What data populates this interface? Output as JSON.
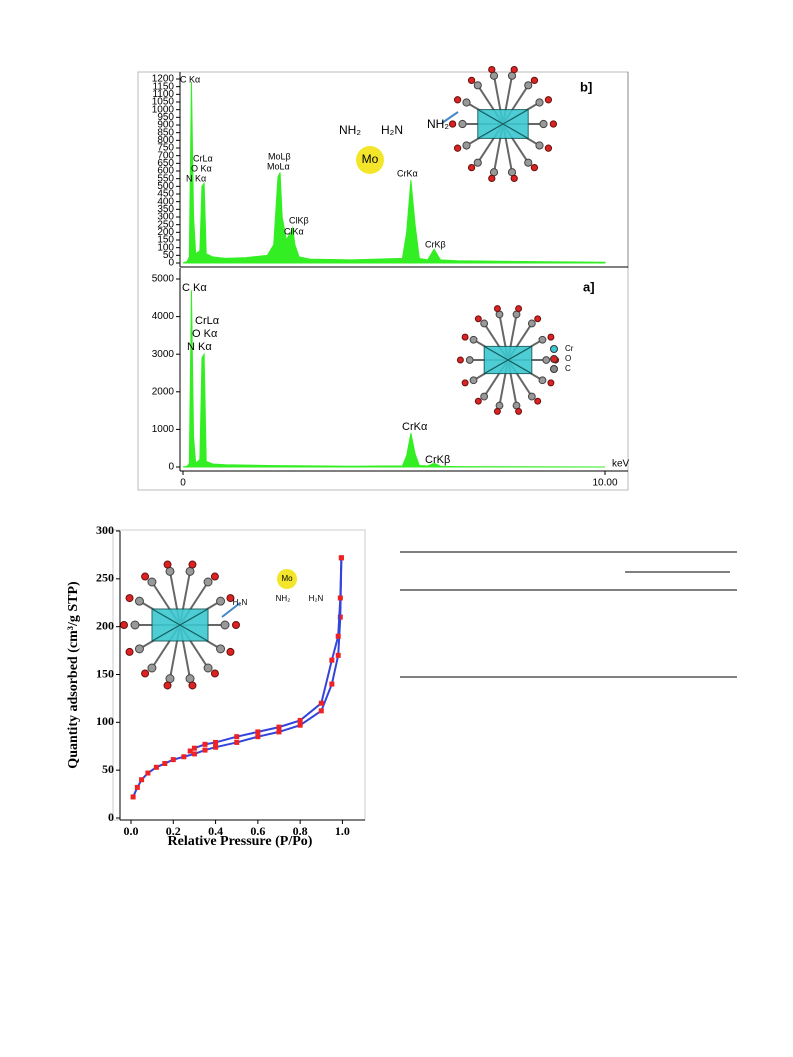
{
  "chart_data": [
    {
      "type": "area",
      "panel_label": "b]",
      "color": "#33ee22",
      "x": [
        0,
        0.1,
        0.15,
        0.2,
        0.25,
        0.3,
        0.4,
        0.45,
        0.5,
        0.55,
        0.7,
        1.0,
        1.5,
        2.0,
        2.15,
        2.25,
        2.3,
        2.35,
        2.45,
        2.55,
        2.6,
        2.65,
        2.75,
        3.0,
        4.0,
        5.2,
        5.3,
        5.4,
        5.5,
        5.6,
        5.8,
        5.95,
        6.1,
        6.5,
        8,
        10
      ],
      "values": [
        0,
        10,
        40,
        1180,
        300,
        60,
        80,
        500,
        520,
        60,
        40,
        30,
        35,
        50,
        120,
        560,
        590,
        300,
        150,
        200,
        230,
        120,
        40,
        25,
        20,
        30,
        200,
        540,
        250,
        30,
        20,
        90,
        20,
        15,
        10,
        5
      ],
      "xlim": [
        0,
        10
      ],
      "ylim": [
        0,
        1200
      ],
      "yticks": [
        0,
        50,
        100,
        150,
        200,
        250,
        300,
        350,
        400,
        450,
        500,
        550,
        600,
        650,
        700,
        750,
        800,
        850,
        900,
        950,
        1000,
        1050,
        1100,
        1150,
        1200
      ],
      "annotations": [
        "C Kα",
        "CrLα",
        "O Kα",
        "N Kα",
        "MoLβ",
        "MoLα",
        "ClKβ",
        "ClKα",
        "CrKα",
        "CrKβ"
      ],
      "inset_labels": [
        "NH₂",
        "H₂N",
        "NH₂",
        "Mo"
      ]
    },
    {
      "type": "area",
      "panel_label": "a]",
      "color": "#33ee22",
      "xlabel": "keV",
      "x": [
        0,
        0.1,
        0.15,
        0.2,
        0.25,
        0.3,
        0.4,
        0.45,
        0.5,
        0.55,
        0.7,
        1.0,
        2.0,
        3.0,
        4.0,
        5.2,
        5.3,
        5.4,
        5.5,
        5.6,
        5.8,
        5.95,
        6.1,
        6.5,
        8,
        10
      ],
      "values": [
        0,
        20,
        100,
        4700,
        800,
        100,
        200,
        2900,
        3000,
        150,
        80,
        60,
        40,
        30,
        20,
        30,
        300,
        900,
        350,
        40,
        25,
        100,
        20,
        10,
        5,
        0
      ],
      "xlim": [
        0,
        10
      ],
      "xticks": [
        0,
        {
          "value": 10,
          "label": "10.00"
        }
      ],
      "ylim": [
        0,
        5000
      ],
      "yticks": [
        0,
        1000,
        2000,
        3000,
        4000,
        5000
      ],
      "annotations": [
        "C Kα",
        "CrLα",
        "O Kα",
        "N Kα",
        "CrKα",
        "CrKβ"
      ],
      "inset_labels": [
        "Cr",
        "O",
        "C"
      ]
    },
    {
      "type": "line",
      "xlabel": "Relative Pressure (P/Po)",
      "ylabel": "Quantity adsorbed (cm³/g STP)",
      "xlim": [
        0,
        1.05
      ],
      "ylim": [
        0,
        300
      ],
      "xticks": [
        {
          "value": 0,
          "label": "0.0"
        },
        0.2,
        0.4,
        0.6,
        0.8,
        {
          "value": 1,
          "label": "1.0"
        }
      ],
      "yticks": [
        0,
        50,
        100,
        150,
        200,
        250,
        300
      ],
      "series": [
        {
          "color": "#3344dd",
          "marker_color": "#ee2222",
          "x": [
            0.01,
            0.03,
            0.05,
            0.08,
            0.12,
            0.16,
            0.2,
            0.25,
            0.3,
            0.35,
            0.4,
            0.5,
            0.6,
            0.7,
            0.8,
            0.9,
            0.95,
            0.98,
            0.99,
            0.995
          ],
          "values": [
            22,
            32,
            40,
            47,
            53,
            57,
            61,
            64,
            67,
            71,
            74,
            79,
            85,
            90,
            97,
            112,
            140,
            170,
            210,
            272
          ]
        },
        {
          "color": "#3344dd",
          "marker_color": "#ee2222",
          "x": [
            0.995,
            0.99,
            0.98,
            0.95,
            0.9,
            0.8,
            0.7,
            0.6,
            0.5,
            0.4,
            0.35,
            0.3,
            0.28
          ],
          "values": [
            272,
            230,
            190,
            165,
            120,
            102,
            95,
            90,
            85,
            79,
            77,
            73,
            70
          ]
        }
      ],
      "inset_labels": [
        "H₂N",
        "NH₂",
        "H₂N",
        "Mo"
      ]
    }
  ]
}
